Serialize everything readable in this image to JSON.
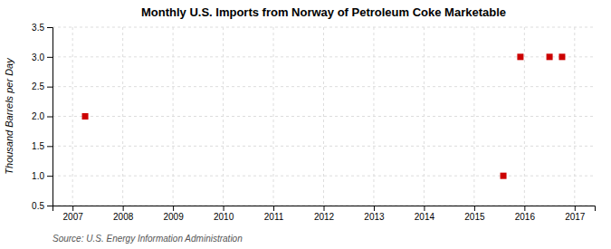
{
  "chart_data": {
    "type": "scatter",
    "title": "Monthly U.S. Imports from Norway of Petroleum Coke Marketable",
    "y_label": "Thousand Barrels per Day",
    "annotations": [
      "Source: U.S. Energy Information Administration"
    ],
    "x": [
      2007.25,
      2015.58,
      2015.92,
      2016.5,
      2016.75
    ],
    "values": [
      2.0,
      1.0,
      3.0,
      3.0,
      3.0
    ],
    "color": "#cc0000",
    "marker": "square",
    "xlim": [
      2006.6,
      2017.4
    ],
    "ylim": [
      0.5,
      3.5
    ],
    "xticks": [
      2007,
      2008,
      2009,
      2010,
      2011,
      2012,
      2013,
      2014,
      2015,
      2016,
      2017
    ],
    "yticks": [
      0.5,
      {
        "value": 1.0,
        "label": "1.0"
      },
      1.5,
      {
        "value": 2.0,
        "label": "2.0"
      },
      2.5,
      {
        "value": 3.0,
        "label": "3.0"
      },
      3.5
    ],
    "grid": true
  }
}
